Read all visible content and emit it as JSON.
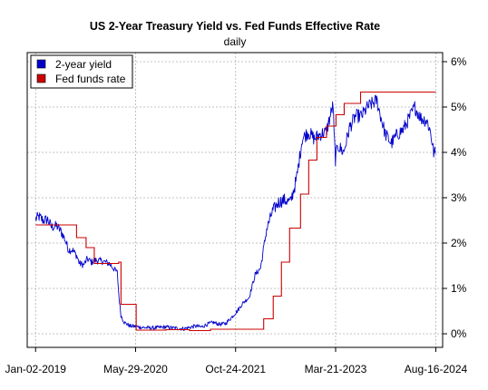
{
  "chart_data": {
    "type": "line",
    "title": "US 2-Year Treasury Yield vs. Fed Funds Effective Rate",
    "subtitle": "daily",
    "legend_position": "top-left",
    "grid": true,
    "xlim": [
      "2018-11-20",
      "2024-09-20"
    ],
    "ylim": [
      -0.3,
      6.2
    ],
    "x_ticks": [
      "2019-01-02",
      "2020-05-29",
      "2021-10-24",
      "2023-03-21",
      "2024-08-16"
    ],
    "x_tick_labels": [
      "Jan-02-2019",
      "May-29-2020",
      "Oct-24-2021",
      "Mar-21-2023",
      "Aug-16-2024"
    ],
    "y_ticks": [
      0,
      1,
      2,
      3,
      4,
      5,
      6
    ],
    "y_tick_labels": [
      "0%",
      "1%",
      "2%",
      "3%",
      "4%",
      "5%",
      "6%"
    ],
    "series": [
      {
        "name": "2-year yield",
        "color": "#0000cc",
        "x": [
          "2019-01-02",
          "2019-01-20",
          "2019-02-10",
          "2019-03-05",
          "2019-03-25",
          "2019-04-20",
          "2019-05-10",
          "2019-05-31",
          "2019-06-20",
          "2019-07-10",
          "2019-08-01",
          "2019-08-15",
          "2019-09-05",
          "2019-09-25",
          "2019-10-15",
          "2019-11-05",
          "2019-12-10",
          "2020-01-15",
          "2020-02-10",
          "2020-02-25",
          "2020-03-05",
          "2020-03-15",
          "2020-04-01",
          "2020-05-01",
          "2020-06-01",
          "2020-07-01",
          "2020-08-01",
          "2020-09-01",
          "2020-10-01",
          "2020-11-01",
          "2020-12-01",
          "2021-01-01",
          "2021-02-01",
          "2021-03-01",
          "2021-04-01",
          "2021-05-01",
          "2021-06-01",
          "2021-07-01",
          "2021-08-01",
          "2021-09-01",
          "2021-10-01",
          "2021-11-01",
          "2021-12-01",
          "2022-01-01",
          "2022-02-01",
          "2022-03-01",
          "2022-04-01",
          "2022-05-01",
          "2022-06-01",
          "2022-07-01",
          "2022-08-01",
          "2022-09-01",
          "2022-10-01",
          "2022-11-01",
          "2022-12-01",
          "2023-01-01",
          "2023-02-01",
          "2023-03-08",
          "2023-03-13",
          "2023-03-20",
          "2023-04-01",
          "2023-05-01",
          "2023-06-01",
          "2023-07-01",
          "2023-08-01",
          "2023-09-01",
          "2023-10-18",
          "2023-11-01",
          "2023-12-01",
          "2024-01-01",
          "2024-02-01",
          "2024-03-01",
          "2024-04-01",
          "2024-04-30",
          "2024-06-01",
          "2024-07-01",
          "2024-07-20",
          "2024-08-05",
          "2024-08-16"
        ],
        "values": [
          2.53,
          2.58,
          2.5,
          2.52,
          2.35,
          2.38,
          2.27,
          2.1,
          1.85,
          1.85,
          1.72,
          1.55,
          1.52,
          1.65,
          1.58,
          1.62,
          1.6,
          1.55,
          1.42,
          1.35,
          0.8,
          0.4,
          0.25,
          0.17,
          0.16,
          0.14,
          0.13,
          0.13,
          0.14,
          0.15,
          0.13,
          0.12,
          0.11,
          0.14,
          0.17,
          0.15,
          0.21,
          0.25,
          0.21,
          0.22,
          0.35,
          0.5,
          0.68,
          0.8,
          1.3,
          1.45,
          2.3,
          2.7,
          2.9,
          2.95,
          2.9,
          3.4,
          4.3,
          4.45,
          4.3,
          4.4,
          4.45,
          5.05,
          4.4,
          3.85,
          4.15,
          4.0,
          4.55,
          4.8,
          4.8,
          5.0,
          5.15,
          4.9,
          4.4,
          4.2,
          4.4,
          4.5,
          4.75,
          5.0,
          4.75,
          4.7,
          4.45,
          4.0,
          3.97
        ]
      },
      {
        "name": "Fed funds rate",
        "color": "#cc0000",
        "x": [
          "2019-01-02",
          "2019-07-31",
          "2019-09-18",
          "2019-10-30",
          "2020-03-03",
          "2020-03-15",
          "2020-06-01",
          "2020-11-01",
          "2021-01-01",
          "2021-03-01",
          "2021-06-17",
          "2022-03-17",
          "2022-05-05",
          "2022-06-16",
          "2022-07-28",
          "2022-09-22",
          "2022-11-03",
          "2022-12-15",
          "2023-02-02",
          "2023-03-23",
          "2023-05-04",
          "2023-07-27",
          "2024-08-16"
        ],
        "values": [
          2.4,
          2.12,
          1.9,
          1.55,
          1.58,
          0.65,
          0.08,
          0.09,
          0.09,
          0.07,
          0.1,
          0.33,
          0.83,
          1.58,
          2.33,
          3.08,
          3.83,
          4.33,
          4.58,
          4.83,
          5.08,
          5.33,
          5.33
        ]
      }
    ]
  }
}
